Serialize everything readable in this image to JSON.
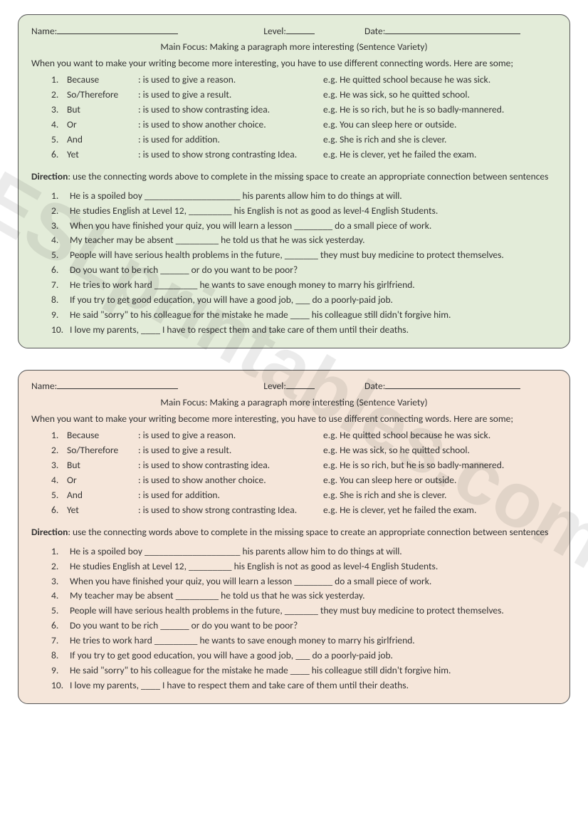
{
  "watermark": "ESLprintables.com",
  "cards": [
    {
      "bg_class": "green"
    },
    {
      "bg_class": "orange"
    }
  ],
  "header": {
    "name_label": "Name:",
    "level_label": "Level:",
    "date_label": "Date:"
  },
  "main_focus": "Main Focus:  Making a paragraph more interesting (Sentence Variety)",
  "intro": "When you want to make your writing become more interesting, you have to use different connecting words. Here are some;",
  "definitions": [
    {
      "n": "1.",
      "word": "Because",
      "desc": ": is used to give a reason.",
      "ex": "e.g. He quitted school because he was sick."
    },
    {
      "n": "2.",
      "word": "So/Therefore",
      "desc": ": is used to give a result.",
      "ex": "e.g. He was sick, so he quitted school."
    },
    {
      "n": "3.",
      "word": "But",
      "desc": ": is used to show contrasting idea.",
      "ex": "e.g. He is so rich, but he is so badly-mannered."
    },
    {
      "n": "4.",
      "word": "Or",
      "desc": ": is used to show another choice.",
      "ex": "e.g. You can sleep here or outside."
    },
    {
      "n": "5.",
      "word": "And",
      "desc": ": is used for addition.",
      "ex": "e.g. She is rich and she is clever."
    },
    {
      "n": "6.",
      "word": "Yet",
      "desc": ": is used to show strong contrasting Idea.",
      "ex": "e.g. He is clever, yet he failed the exam."
    }
  ],
  "direction_label": "Direction",
  "direction_text": ": use the connecting words above to complete in the missing space to create an appropriate connection between sentences",
  "exercises": [
    {
      "n": "1.",
      "t": "He is a spoiled boy ____________________ his parents allow him to do things at will."
    },
    {
      "n": "2.",
      "t": "He studies English at Level 12, _________ his English is not as good as level-4 English Students."
    },
    {
      "n": "3.",
      "t": "When you have finished your quiz, you will learn a lesson ________ do a small piece of work."
    },
    {
      "n": "4.",
      "t": "My teacher may be absent _________ he told us that he was sick yesterday."
    },
    {
      "n": "5.",
      "t": "People will have serious health problems in the future, _______ they must buy medicine to protect themselves."
    },
    {
      "n": "6.",
      "t": "Do you want to be rich ______ or do you want to be poor?"
    },
    {
      "n": "7.",
      "t": "He tries to work hard _________ he wants to save enough money to marry his girlfriend."
    },
    {
      "n": "8.",
      "t": "If you try to get good education, you will have a good job, ___ do a poorly-paid job."
    },
    {
      "n": "9.",
      "t": "He said \"sorry\" to his colleague for the mistake he made ____ his colleague still didn't forgive him."
    },
    {
      "n": "10.",
      "t": "I love my parents, ____ I have to respect them and take care of them until their deaths."
    }
  ]
}
